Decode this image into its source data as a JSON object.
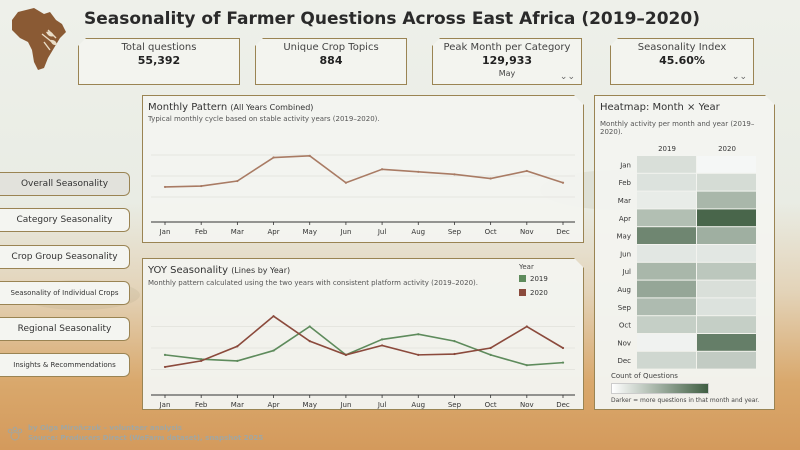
{
  "title": "Seasonality of Farmer Questions Across East Africa (2019–2020)",
  "kpis": {
    "total": {
      "label": "Total questions",
      "value": "55,392"
    },
    "topics": {
      "label": "Unique Crop Topics",
      "value": "884"
    },
    "peak": {
      "label": "Peak Month per Category",
      "value": "129,933",
      "sub": "May"
    },
    "index": {
      "label": "Seasonality Index",
      "value": "45.60%"
    }
  },
  "nav": [
    "Overall Seasonality",
    "Category Seasonality",
    "Crop Group Seasonality",
    "Seasonality of Individual Crops",
    "Regional Seasonality",
    "Insights & Recommendations"
  ],
  "monthly": {
    "title": "Monthly Pattern",
    "title_small": "(All Years Combined)",
    "subtitle": "Typical monthly cycle based on stable activity years (2019–2020)."
  },
  "yoy": {
    "title": "YOY Seasonality",
    "title_small": "(Lines by Year)",
    "subtitle": "Monthly pattern calculated using the two years with consistent platform activity (2019–2020).",
    "legend_title": "Year"
  },
  "heatmap": {
    "title": "Heatmap: Month × Year",
    "subtitle": "Monthly activity per month and year (2019–2020).",
    "legend_title": "Count of Questions",
    "note": "Darker = more questions in that month and year."
  },
  "colors": {
    "monthly_line": "#a97b64",
    "y2019": "#5e8b5c",
    "y2020": "#8b4a3c",
    "heat_low": "#ffffff",
    "heat_high": "#3f5e42",
    "accent_border": "#9a8453"
  },
  "chart_data": [
    {
      "type": "line",
      "title": "Monthly Pattern (All Years Combined)",
      "categories": [
        "Jan",
        "Feb",
        "Mar",
        "Apr",
        "May",
        "Jun",
        "Jul",
        "Aug",
        "Sep",
        "Oct",
        "Nov",
        "Dec"
      ],
      "values": [
        37,
        38,
        44,
        72,
        74,
        42,
        58,
        55,
        52,
        47,
        56,
        42
      ],
      "ylim": [
        0,
        100
      ],
      "grid": true
    },
    {
      "type": "line",
      "title": "YOY Seasonality (Lines by Year)",
      "categories": [
        "Jan",
        "Feb",
        "Mar",
        "Apr",
        "May",
        "Jun",
        "Jul",
        "Aug",
        "Sep",
        "Oct",
        "Nov",
        "Dec"
      ],
      "ylim": [
        0,
        100
      ],
      "series": [
        {
          "name": "2019",
          "values": [
            42,
            37,
            35,
            47,
            75,
            42,
            60,
            66,
            58,
            42,
            30,
            33
          ]
        },
        {
          "name": "2020",
          "values": [
            28,
            35,
            52,
            87,
            58,
            42,
            53,
            42,
            43,
            50,
            75,
            50
          ]
        }
      ]
    },
    {
      "type": "heatmap",
      "title": "Heatmap: Month × Year",
      "columns": [
        "2019",
        "2020"
      ],
      "rows": [
        "Jan",
        "Feb",
        "Mar",
        "Apr",
        "May",
        "Jun",
        "Jul",
        "Aug",
        "Sep",
        "Oct",
        "Nov",
        "Dec"
      ],
      "values": [
        [
          0.2,
          0.05
        ],
        [
          0.18,
          0.22
        ],
        [
          0.12,
          0.45
        ],
        [
          0.4,
          0.95
        ],
        [
          0.75,
          0.5
        ],
        [
          0.15,
          0.15
        ],
        [
          0.45,
          0.35
        ],
        [
          0.55,
          0.2
        ],
        [
          0.42,
          0.18
        ],
        [
          0.3,
          0.3
        ],
        [
          0.08,
          0.8
        ],
        [
          0.25,
          0.32
        ]
      ]
    }
  ],
  "footer": {
    "line1": "by Olga Miroñczuk – volunteer analysis",
    "line2": "Source: Producers Direct (WeFarm dataset), snapshot 2025"
  }
}
